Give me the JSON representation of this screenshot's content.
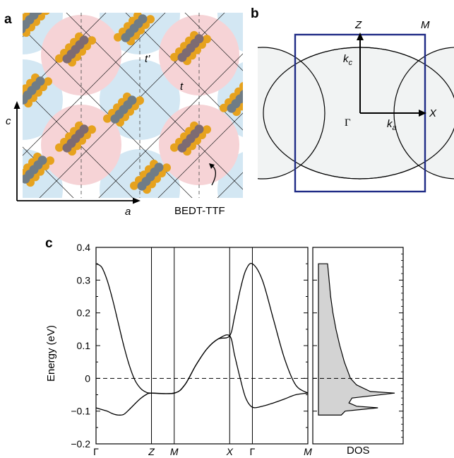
{
  "panels": {
    "a": {
      "letter": "a",
      "axis_vertical": "c",
      "axis_horizontal": "a",
      "transfer_t": "t",
      "transfer_tp": "t’",
      "molecule_label": "BEDT-TTF",
      "colors": {
        "pink": "#f6d3d6",
        "blue": "#d3e7f3",
        "sulfur": "#e6a21e",
        "carbon_pink": "#7d6b72",
        "carbon_blue": "#6f7c86"
      }
    },
    "b": {
      "letter": "b",
      "Z": "Z",
      "M": "M",
      "X": "X",
      "Gamma": "Γ",
      "kc_main": "k",
      "kc_sub": "c",
      "ka_main": "k",
      "ka_sub": "a",
      "colors": {
        "box": "#1f2b86",
        "fill": "#f1f3f3"
      }
    },
    "c": {
      "letter": "c",
      "dos_label": "DOS"
    }
  },
  "chart_data": {
    "type": "line",
    "ylabel": "Energy (eV)",
    "ylim": [
      -0.2,
      0.4
    ],
    "yticks": [
      -0.2,
      -0.1,
      0,
      0.1,
      0.2,
      0.3,
      0.4
    ],
    "ytick_labels": [
      "−0.2",
      "−0.1",
      "0",
      "0.1",
      "0.2",
      "0.3",
      "0.4"
    ],
    "fermi_level": 0,
    "k_path": {
      "labels": [
        "Γ",
        "Z",
        "M",
        "X",
        "Γ",
        "M"
      ],
      "positions": [
        0,
        1,
        1.41,
        2.41,
        2.82,
        3.82
      ]
    },
    "series": [
      {
        "k": [
          0,
          0.1,
          0.2,
          0.3,
          0.4,
          0.5,
          0.6,
          0.7,
          0.8,
          0.9,
          1.0,
          1.41,
          1.6,
          1.8,
          2.0,
          2.2,
          2.41,
          2.5,
          2.6,
          2.7,
          2.82,
          3.0,
          3.2,
          3.4,
          3.6,
          3.82
        ],
        "energy": [
          0.35,
          0.34,
          0.3,
          0.24,
          0.17,
          0.1,
          0.04,
          -0.005,
          -0.03,
          -0.042,
          -0.045,
          -0.045,
          -0.02,
          0.04,
          0.09,
          0.12,
          0.13,
          0.19,
          0.27,
          0.33,
          0.35,
          0.3,
          0.18,
          0.06,
          -0.02,
          -0.045
        ]
      },
      {
        "k": [
          0,
          0.1,
          0.2,
          0.3,
          0.4,
          0.5,
          0.6,
          0.7,
          0.8,
          0.9,
          1.0,
          1.41,
          1.6,
          1.8,
          2.0,
          2.2,
          2.41,
          2.5,
          2.6,
          2.7,
          2.82,
          3.0,
          3.2,
          3.4,
          3.6,
          3.82
        ],
        "energy": [
          -0.09,
          -0.095,
          -0.1,
          -0.108,
          -0.112,
          -0.11,
          -0.095,
          -0.078,
          -0.062,
          -0.05,
          -0.045,
          -0.045,
          -0.02,
          0.04,
          0.09,
          0.12,
          0.13,
          0.07,
          0.0,
          -0.06,
          -0.088,
          -0.085,
          -0.075,
          -0.063,
          -0.05,
          -0.045
        ]
      }
    ],
    "dos": {
      "energy": [
        0.35,
        0.3,
        0.25,
        0.2,
        0.15,
        0.1,
        0.05,
        0.0,
        -0.02,
        -0.04,
        -0.045,
        -0.06,
        -0.075,
        -0.085,
        -0.09,
        -0.1,
        -0.112
      ],
      "value": [
        0.12,
        0.14,
        0.16,
        0.19,
        0.23,
        0.28,
        0.34,
        0.42,
        0.5,
        0.68,
        1.0,
        0.44,
        0.4,
        0.5,
        0.78,
        0.35,
        0.3
      ]
    }
  }
}
